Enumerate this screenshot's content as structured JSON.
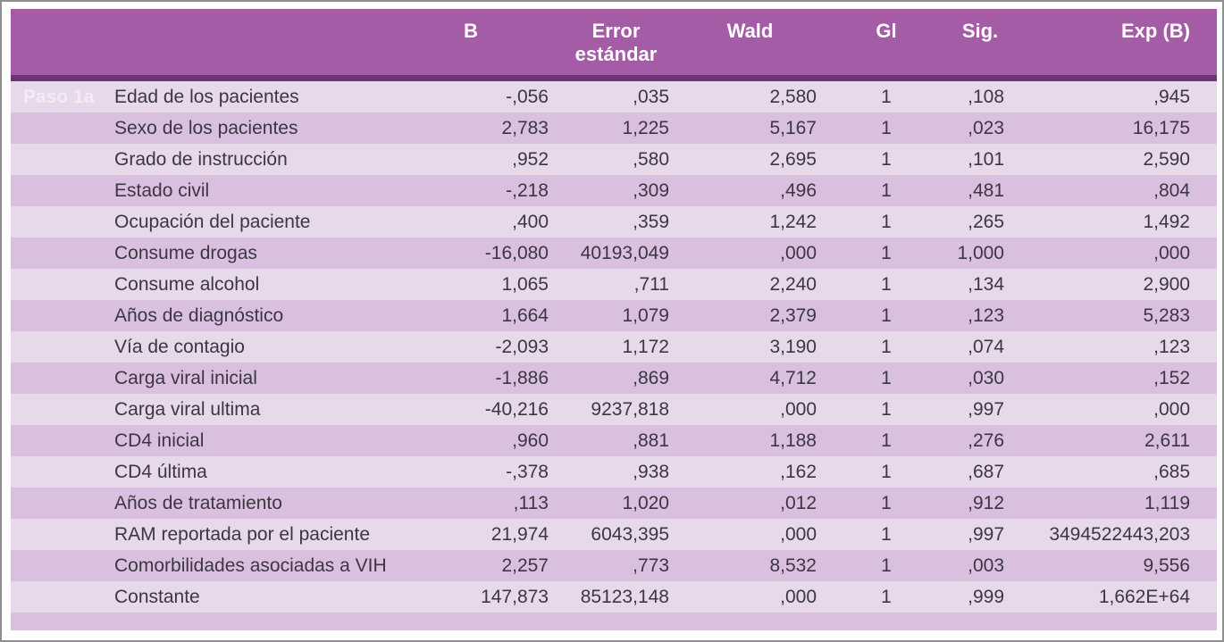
{
  "colors": {
    "header_bg": "#a55ca7",
    "header_divider": "#6e3472",
    "row_light": "#e7d9e9",
    "row_dark": "#d9c0df",
    "header_text": "#ffffff",
    "body_text": "#3c3642",
    "step_text": "#f3ebf5",
    "frame_border": "#8f8f8f"
  },
  "table": {
    "step_label": "Paso 1a",
    "columns": {
      "b": "B",
      "error": "Error estándar",
      "wald": "Wald",
      "gl": "Gl",
      "sig": "Sig.",
      "exp": "Exp (B)"
    },
    "rows": [
      {
        "step": "Paso 1a",
        "variable": "Edad de los pacientes",
        "b": "-,056",
        "se": ",035",
        "wald": "2,580",
        "gl": "1",
        "sig": ",108",
        "exp": ",945"
      },
      {
        "step": "",
        "variable": "Sexo de los pacientes",
        "b": "2,783",
        "se": "1,225",
        "wald": "5,167",
        "gl": "1",
        "sig": ",023",
        "exp": "16,175"
      },
      {
        "step": "",
        "variable": "Grado de instrucción",
        "b": ",952",
        "se": ",580",
        "wald": "2,695",
        "gl": "1",
        "sig": ",101",
        "exp": "2,590"
      },
      {
        "step": "",
        "variable": "Estado civil",
        "b": "-,218",
        "se": ",309",
        "wald": ",496",
        "gl": "1",
        "sig": ",481",
        "exp": ",804"
      },
      {
        "step": "",
        "variable": "Ocupación del paciente",
        "b": ",400",
        "se": ",359",
        "wald": "1,242",
        "gl": "1",
        "sig": ",265",
        "exp": "1,492"
      },
      {
        "step": "",
        "variable": "Consume drogas",
        "b": "-16,080",
        "se": "40193,049",
        "wald": ",000",
        "gl": "1",
        "sig": "1,000",
        "exp": ",000"
      },
      {
        "step": "",
        "variable": "Consume alcohol",
        "b": "1,065",
        "se": ",711",
        "wald": "2,240",
        "gl": "1",
        "sig": ",134",
        "exp": "2,900"
      },
      {
        "step": "",
        "variable": "Años de diagnóstico",
        "b": "1,664",
        "se": "1,079",
        "wald": "2,379",
        "gl": "1",
        "sig": ",123",
        "exp": "5,283"
      },
      {
        "step": "",
        "variable": "Vía de contagio",
        "b": "-2,093",
        "se": "1,172",
        "wald": "3,190",
        "gl": "1",
        "sig": ",074",
        "exp": ",123"
      },
      {
        "step": "",
        "variable": "Carga viral inicial",
        "b": "-1,886",
        "se": ",869",
        "wald": "4,712",
        "gl": "1",
        "sig": ",030",
        "exp": ",152"
      },
      {
        "step": "",
        "variable": "Carga viral ultima",
        "b": "-40,216",
        "se": "9237,818",
        "wald": ",000",
        "gl": "1",
        "sig": ",997",
        "exp": ",000"
      },
      {
        "step": "",
        "variable": "CD4 inicial",
        "b": ",960",
        "se": ",881",
        "wald": "1,188",
        "gl": "1",
        "sig": ",276",
        "exp": "2,611"
      },
      {
        "step": "",
        "variable": "CD4 última",
        "b": "-,378",
        "se": ",938",
        "wald": ",162",
        "gl": "1",
        "sig": ",687",
        "exp": ",685"
      },
      {
        "step": "",
        "variable": "Años de tratamiento",
        "b": ",113",
        "se": "1,020",
        "wald": ",012",
        "gl": "1",
        "sig": ",912",
        "exp": "1,119"
      },
      {
        "step": "",
        "variable": "RAM reportada por el paciente",
        "b": "21,974",
        "se": "6043,395",
        "wald": ",000",
        "gl": "1",
        "sig": ",997",
        "exp": "3494522443,203"
      },
      {
        "step": "",
        "variable": "Comorbilidades asociadas a VIH",
        "b": "2,257",
        "se": ",773",
        "wald": "8,532",
        "gl": "1",
        "sig": ",003",
        "exp": "9,556"
      },
      {
        "step": "",
        "variable": "Constante",
        "b": "147,873",
        "se": "85123,148",
        "wald": ",000",
        "gl": "1",
        "sig": ",999",
        "exp": "1,662E+64"
      }
    ]
  }
}
